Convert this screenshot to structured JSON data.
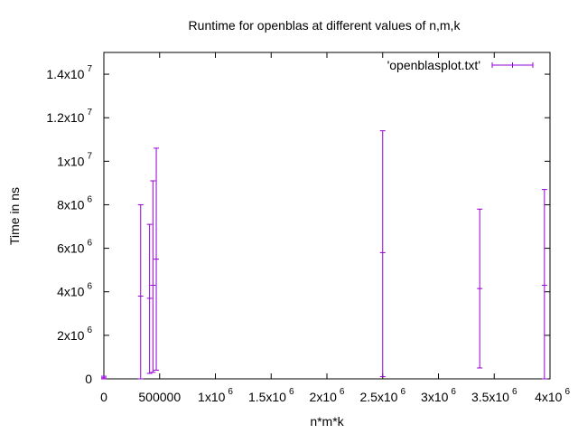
{
  "chart_data": {
    "type": "scatter",
    "title": "Runtime for openblas at different values of n,m,k",
    "xlabel": "n*m*k",
    "ylabel": "Time in ns",
    "xlim": [
      0,
      4000000
    ],
    "ylim": [
      0,
      15000000
    ],
    "x_ticks": [
      {
        "value": 0,
        "base": "0",
        "exp": ""
      },
      {
        "value": 500000,
        "base": "500000",
        "exp": ""
      },
      {
        "value": 1000000,
        "base": "1x10",
        "exp": "6"
      },
      {
        "value": 1500000,
        "base": "1.5x10",
        "exp": "6"
      },
      {
        "value": 2000000,
        "base": "2x10",
        "exp": "6"
      },
      {
        "value": 2500000,
        "base": "2.5x10",
        "exp": "6"
      },
      {
        "value": 3000000,
        "base": "3x10",
        "exp": "6"
      },
      {
        "value": 3500000,
        "base": "3.5x10",
        "exp": "6"
      },
      {
        "value": 4000000,
        "base": "4x10",
        "exp": "6"
      }
    ],
    "y_ticks": [
      {
        "value": 0,
        "base": "0",
        "exp": ""
      },
      {
        "value": 2000000,
        "base": "2x10",
        "exp": "6"
      },
      {
        "value": 4000000,
        "base": "4x10",
        "exp": "6"
      },
      {
        "value": 6000000,
        "base": "6x10",
        "exp": "6"
      },
      {
        "value": 8000000,
        "base": "8x10",
        "exp": "6"
      },
      {
        "value": 10000000,
        "base": "1x10",
        "exp": "7"
      },
      {
        "value": 12000000,
        "base": "1.2x10",
        "exp": "7"
      },
      {
        "value": 14000000,
        "base": "1.4x10",
        "exp": "7"
      }
    ],
    "grid": false,
    "legend_position": "top-right",
    "series": [
      {
        "name": "'openblasplot.txt'",
        "color": "#9400d3",
        "points": [
          {
            "x": 0,
            "y": 50000,
            "ylow": 0,
            "yhigh": 120000
          },
          {
            "x": 330000,
            "y": 3800000,
            "ylow": 0,
            "yhigh": 8000000
          },
          {
            "x": 410000,
            "y": 3700000,
            "ylow": 250000,
            "yhigh": 7100000
          },
          {
            "x": 440000,
            "y": 4300000,
            "ylow": 300000,
            "yhigh": 9100000
          },
          {
            "x": 470000,
            "y": 5500000,
            "ylow": 400000,
            "yhigh": 10600000
          },
          {
            "x": 2500000,
            "y": 5800000,
            "ylow": 100000,
            "yhigh": 11400000
          },
          {
            "x": 3370000,
            "y": 4150000,
            "ylow": 500000,
            "yhigh": 7800000
          },
          {
            "x": 3950000,
            "y": 4300000,
            "ylow": 0,
            "yhigh": 8700000
          }
        ]
      }
    ]
  }
}
